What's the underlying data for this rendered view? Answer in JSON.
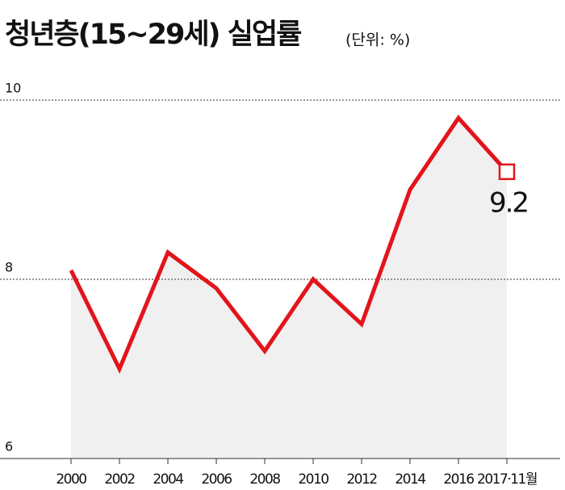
{
  "chart_data": {
    "type": "line",
    "title": "청년층(15~29세) 실업률",
    "subtitle": "(단위: %)",
    "categories": [
      "2000",
      "2002",
      "2004",
      "2006",
      "2008",
      "2010",
      "2012",
      "2014",
      "2016",
      "2017·11월"
    ],
    "series": [
      {
        "name": "청년층 실업률",
        "color": "#e3141b",
        "values": [
          8.1,
          7.0,
          8.3,
          7.9,
          7.2,
          8.0,
          7.5,
          9.0,
          9.8,
          9.2
        ]
      }
    ],
    "ylim": [
      6,
      10
    ],
    "yticks": [
      6,
      8,
      10
    ],
    "grid": true
  }
}
